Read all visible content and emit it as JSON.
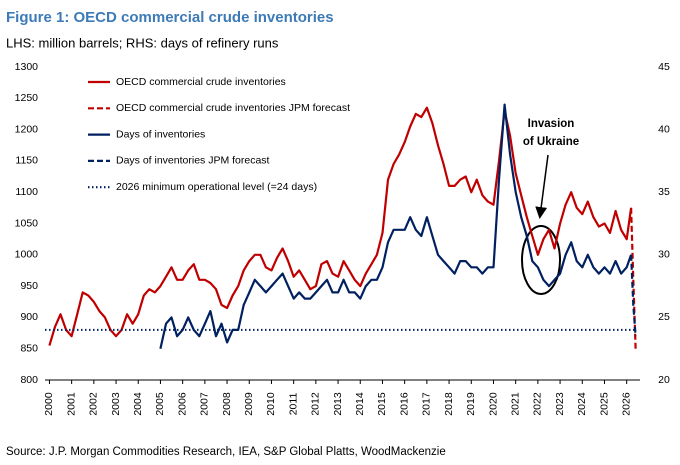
{
  "chart_data": {
    "type": "line",
    "title": "Figure 1: OECD commercial crude inventories",
    "subtitle": "LHS: million barrels; RHS: days of refinery runs",
    "source": "Source: J.P. Morgan Commodities Research, IEA, S&P Global Platts, WoodMackenzie",
    "annotation": [
      "Invasion",
      "of Ukraine"
    ],
    "xlim": [
      1999.8,
      2026.6
    ],
    "xticks": [
      2000,
      2001,
      2002,
      2003,
      2004,
      2005,
      2006,
      2007,
      2008,
      2009,
      2010,
      2011,
      2012,
      2013,
      2014,
      2015,
      2016,
      2017,
      2018,
      2019,
      2020,
      2021,
      2022,
      2023,
      2024,
      2025,
      2026
    ],
    "ylim": [
      800,
      1300
    ],
    "yticks": [
      800,
      850,
      900,
      950,
      1000,
      1050,
      1100,
      1150,
      1200,
      1250,
      1300
    ],
    "y2lim": [
      20,
      45
    ],
    "y2ticks": [
      20,
      25,
      30,
      35,
      40,
      45
    ],
    "series": [
      {
        "name": "OECD commercial crude inventories",
        "color": "#c00000",
        "style": "solid",
        "x": [
          2000,
          2000.25,
          2000.5,
          2000.75,
          2001,
          2001.25,
          2001.5,
          2001.75,
          2002,
          2002.25,
          2002.5,
          2002.75,
          2003,
          2003.25,
          2003.5,
          2003.75,
          2004,
          2004.25,
          2004.5,
          2004.75,
          2005,
          2005.25,
          2005.5,
          2005.75,
          2006,
          2006.25,
          2006.5,
          2006.75,
          2007,
          2007.25,
          2007.5,
          2007.75,
          2008,
          2008.25,
          2008.5,
          2008.75,
          2009,
          2009.25,
          2009.5,
          2009.75,
          2010,
          2010.25,
          2010.5,
          2010.75,
          2011,
          2011.25,
          2011.5,
          2011.75,
          2012,
          2012.25,
          2012.5,
          2012.75,
          2013,
          2013.25,
          2013.5,
          2013.75,
          2014,
          2014.25,
          2014.5,
          2014.75,
          2015,
          2015.25,
          2015.5,
          2015.75,
          2016,
          2016.25,
          2016.5,
          2016.75,
          2017,
          2017.25,
          2017.5,
          2017.75,
          2018,
          2018.25,
          2018.5,
          2018.75,
          2019,
          2019.25,
          2019.5,
          2019.75,
          2020,
          2020.25,
          2020.5,
          2020.75,
          2021,
          2021.25,
          2021.5,
          2021.75,
          2022,
          2022.25,
          2022.5,
          2022.75,
          2023,
          2023.25,
          2023.5,
          2023.75,
          2024,
          2024.25,
          2024.5,
          2024.75,
          2025,
          2025.25,
          2025.5,
          2025.75,
          2026,
          2026.2
        ],
        "values": [
          855,
          885,
          905,
          880,
          870,
          905,
          940,
          935,
          925,
          910,
          900,
          880,
          870,
          880,
          905,
          890,
          905,
          935,
          945,
          940,
          950,
          965,
          980,
          960,
          960,
          975,
          985,
          960,
          960,
          955,
          945,
          920,
          915,
          935,
          950,
          975,
          990,
          1000,
          1000,
          980,
          975,
          995,
          1010,
          990,
          965,
          975,
          960,
          945,
          950,
          985,
          990,
          970,
          965,
          990,
          975,
          960,
          950,
          970,
          985,
          1000,
          1035,
          1120,
          1145,
          1160,
          1180,
          1205,
          1225,
          1220,
          1235,
          1210,
          1175,
          1145,
          1110,
          1110,
          1120,
          1125,
          1100,
          1120,
          1095,
          1085,
          1080,
          1150,
          1230,
          1190,
          1130,
          1095,
          1060,
          1030,
          1000,
          1025,
          1040,
          1010,
          1050,
          1080,
          1100,
          1075,
          1065,
          1085,
          1060,
          1045,
          1050,
          1035,
          1070,
          1040,
          1025,
          1075
        ]
      },
      {
        "name": "OECD commercial crude inventories JPM forecast",
        "color": "#c00000",
        "style": "dashed",
        "x": [
          2026.2,
          2026.3,
          2026.4
        ],
        "values": [
          1075,
          960,
          850
        ]
      },
      {
        "name": "Days of inventories",
        "color": "#002060",
        "style": "solid",
        "axis": "y2",
        "x": [
          2005,
          2005.25,
          2005.5,
          2005.75,
          2006,
          2006.25,
          2006.5,
          2006.75,
          2007,
          2007.25,
          2007.5,
          2007.75,
          2008,
          2008.25,
          2008.5,
          2008.75,
          2009,
          2009.25,
          2009.5,
          2009.75,
          2010,
          2010.25,
          2010.5,
          2010.75,
          2011,
          2011.25,
          2011.5,
          2011.75,
          2012,
          2012.25,
          2012.5,
          2012.75,
          2013,
          2013.25,
          2013.5,
          2013.75,
          2014,
          2014.25,
          2014.5,
          2014.75,
          2015,
          2015.25,
          2015.5,
          2015.75,
          2016,
          2016.25,
          2016.5,
          2016.75,
          2017,
          2017.25,
          2017.5,
          2017.75,
          2018,
          2018.25,
          2018.5,
          2018.75,
          2019,
          2019.25,
          2019.5,
          2019.75,
          2020,
          2020.25,
          2020.5,
          2020.75,
          2021,
          2021.25,
          2021.5,
          2021.75,
          2022,
          2022.25,
          2022.5,
          2022.75,
          2023,
          2023.25,
          2023.5,
          2023.75,
          2024,
          2024.25,
          2024.5,
          2024.75,
          2025,
          2025.25,
          2025.5,
          2025.75,
          2026,
          2026.2
        ],
        "values": [
          22.5,
          24.5,
          25,
          23.5,
          24,
          25,
          24,
          23.5,
          24.5,
          25.5,
          23.5,
          24.5,
          23,
          24,
          24,
          26,
          27,
          28,
          27.5,
          27,
          27.5,
          28,
          28.5,
          27.5,
          26.5,
          27,
          26.5,
          26.5,
          27,
          27.5,
          28,
          27,
          27,
          28,
          27,
          27,
          26.5,
          27.5,
          28,
          28,
          29,
          31,
          32,
          32,
          32,
          33,
          32,
          31.5,
          33,
          31.5,
          30,
          29.5,
          29,
          28.5,
          29.5,
          29.5,
          29,
          29,
          28.5,
          29,
          29,
          36,
          42,
          38,
          35,
          33,
          31.5,
          29.5,
          29,
          28,
          27.5,
          28,
          28.5,
          30,
          31,
          29.5,
          29,
          30,
          29,
          28.5,
          29,
          28.5,
          29.5,
          28.5,
          29,
          30
        ]
      },
      {
        "name": "Days of inventories JPM forecast",
        "color": "#002060",
        "style": "dashed",
        "axis": "y2",
        "x": [
          2026.2,
          2026.3,
          2026.4
        ],
        "values": [
          30,
          26,
          23.5
        ]
      },
      {
        "name": "2026 minimum operational level (=24 days)",
        "color": "#002060",
        "style": "dotted",
        "axis": "y2",
        "x": [
          1999.8,
          2026.4
        ],
        "values": [
          24,
          24
        ]
      }
    ]
  }
}
